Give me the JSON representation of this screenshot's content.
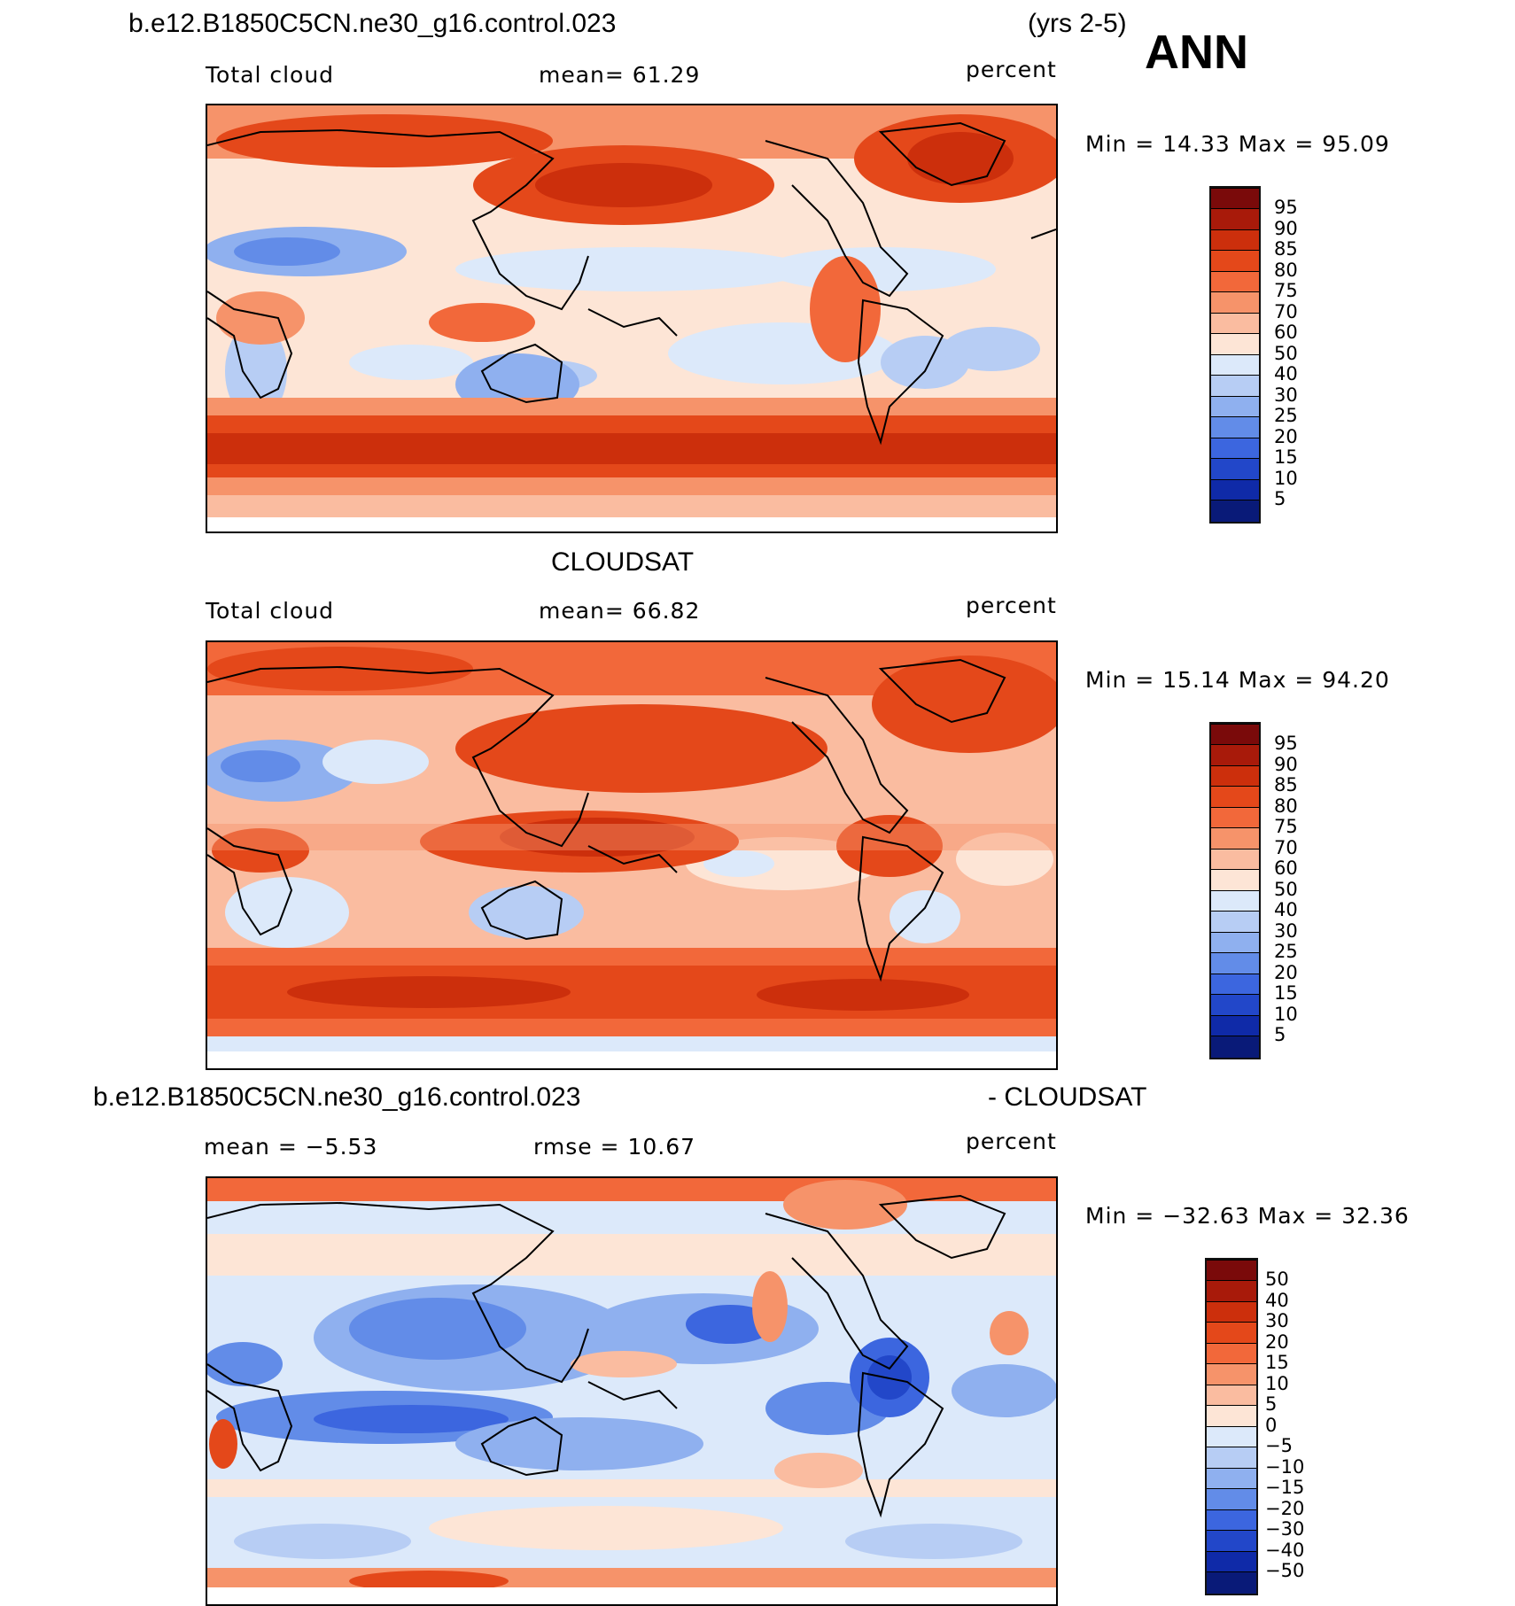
{
  "header": {
    "case_name": "b.e12.B1850C5CN.ne30_g16.control.023",
    "years": "(yrs 2-5)",
    "season": "ANN"
  },
  "panels": [
    {
      "id": "model",
      "variable_label": "Total cloud",
      "stat_label": "mean=  61.29",
      "units": "percent",
      "minmax": "Min =   14.33 Max =   95.09",
      "colorbar_labels": [
        "95",
        "90",
        "85",
        "80",
        "75",
        "70",
        "60",
        "50",
        "40",
        "30",
        "25",
        "20",
        "15",
        "10",
        "5"
      ]
    },
    {
      "id": "obs",
      "title": "CLOUDSAT",
      "variable_label": "Total cloud",
      "stat_label": "mean=  66.82",
      "units": "percent",
      "minmax": "Min =   15.14 Max =   94.20",
      "colorbar_labels": [
        "95",
        "90",
        "85",
        "80",
        "75",
        "70",
        "60",
        "50",
        "40",
        "30",
        "25",
        "20",
        "15",
        "10",
        "5"
      ]
    },
    {
      "id": "diff",
      "title_left": "b.e12.B1850C5CN.ne30_g16.control.023",
      "title_right": "- CLOUDSAT",
      "mean_label": "mean =   −5.53",
      "rmse_label": "rmse =   10.67",
      "units": "percent",
      "minmax": "Min = −32.63 Max =   32.36",
      "colorbar_labels": [
        "50",
        "40",
        "30",
        "20",
        "15",
        "10",
        "5",
        "0",
        "−5",
        "−10",
        "−15",
        "−20",
        "−30",
        "−40",
        "−50"
      ]
    }
  ],
  "colors": {
    "scale": [
      "#7a0a0a",
      "#a81a0a",
      "#cc2f0c",
      "#e4481a",
      "#f2683a",
      "#f6936a",
      "#fabca0",
      "#fde5d6",
      "#dce9fa",
      "#b7cdf4",
      "#8fb0ef",
      "#628ce8",
      "#3c66df",
      "#2247c9",
      "#0f2aa8",
      "#091a78"
    ]
  }
}
